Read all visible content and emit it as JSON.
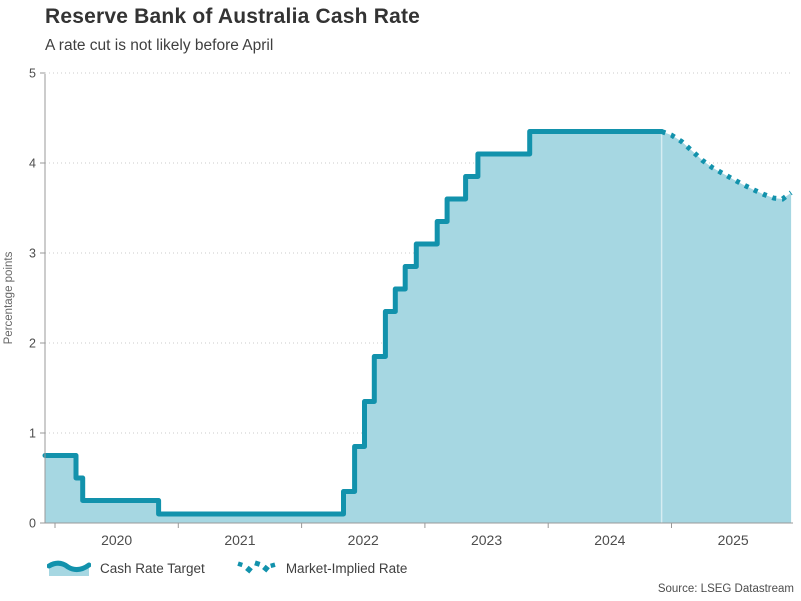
{
  "chart_data": {
    "type": "line",
    "title": "Reserve Bank of Australia Cash Rate",
    "subtitle": "A rate cut is not likely before April",
    "ylabel": "Percentage points",
    "source": "Source: LSEG Datastream",
    "ylim": [
      0,
      5
    ],
    "yticks": [
      0,
      1,
      2,
      3,
      4,
      5
    ],
    "xticks_years": [
      2020,
      2021,
      2022,
      2023,
      2024,
      2025
    ],
    "x_domain_years": [
      2019.915,
      2025.985
    ],
    "grid": "horizontal-dotted",
    "legend_position": "bottom-left",
    "colors": {
      "line": "#1292ac",
      "fill": "#a6d7e2",
      "axis": "#999999",
      "grid": "#cbcbcb",
      "tick_text": "#4d4d4d"
    },
    "series": [
      {
        "name": "Cash Rate Target",
        "style": "solid-step-area",
        "steps": [
          [
            2019.915,
            0.75
          ],
          [
            2020.17,
            0.5
          ],
          [
            2020.225,
            0.25
          ],
          [
            2020.84,
            0.1
          ],
          [
            2022.34,
            0.35
          ],
          [
            2022.43,
            0.85
          ],
          [
            2022.51,
            1.35
          ],
          [
            2022.59,
            1.85
          ],
          [
            2022.68,
            2.35
          ],
          [
            2022.76,
            2.6
          ],
          [
            2022.84,
            2.85
          ],
          [
            2022.93,
            3.1
          ],
          [
            2023.1,
            3.35
          ],
          [
            2023.18,
            3.6
          ],
          [
            2023.33,
            3.85
          ],
          [
            2023.43,
            4.1
          ],
          [
            2023.85,
            4.35
          ]
        ],
        "end_year": 2024.92
      },
      {
        "name": "Market-Implied Rate",
        "style": "dotted-line-area",
        "points": [
          [
            2024.92,
            4.35
          ],
          [
            2025.0,
            4.31
          ],
          [
            2025.08,
            4.24
          ],
          [
            2025.17,
            4.13
          ],
          [
            2025.25,
            4.03
          ],
          [
            2025.33,
            3.95
          ],
          [
            2025.42,
            3.88
          ],
          [
            2025.5,
            3.82
          ],
          [
            2025.58,
            3.76
          ],
          [
            2025.67,
            3.7
          ],
          [
            2025.75,
            3.65
          ],
          [
            2025.83,
            3.61
          ],
          [
            2025.9,
            3.6
          ],
          [
            2025.97,
            3.67
          ]
        ]
      }
    ]
  }
}
